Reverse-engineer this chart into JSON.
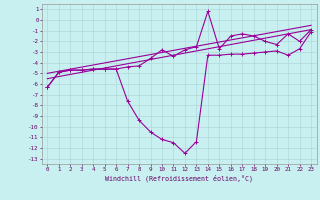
{
  "xlabel": "Windchill (Refroidissement éolien,°C)",
  "bg_color": "#c8f0f0",
  "grid_color": "#b0d8d8",
  "line_color": "#990099",
  "xlim": [
    -0.5,
    23.5
  ],
  "ylim": [
    -13.5,
    1.5
  ],
  "xticks": [
    0,
    1,
    2,
    3,
    4,
    5,
    6,
    7,
    8,
    9,
    10,
    11,
    12,
    13,
    14,
    15,
    16,
    17,
    18,
    19,
    20,
    21,
    22,
    23
  ],
  "yticks": [
    1,
    0,
    -1,
    -2,
    -3,
    -4,
    -5,
    -6,
    -7,
    -8,
    -9,
    -10,
    -11,
    -12,
    -13
  ],
  "line1_x": [
    0,
    1,
    2,
    3,
    4,
    5,
    6,
    7,
    8,
    9,
    10,
    11,
    12,
    13,
    14,
    15,
    16,
    17,
    18,
    19,
    20,
    21,
    22,
    23
  ],
  "line1_y": [
    -6.3,
    -4.9,
    -4.7,
    -4.7,
    -4.6,
    -4.6,
    -4.6,
    -7.6,
    -9.4,
    -10.5,
    -11.2,
    -11.5,
    -12.5,
    -11.4,
    -3.3,
    -3.3,
    -3.2,
    -3.2,
    -3.1,
    -3.0,
    -2.9,
    -3.3,
    -2.7,
    -1.1
  ],
  "line2_x": [
    0,
    1,
    2,
    3,
    4,
    5,
    6,
    7,
    8,
    9,
    10,
    11,
    12,
    13,
    14,
    15,
    16,
    17,
    18,
    19,
    20,
    21,
    22,
    23
  ],
  "line2_y": [
    -6.3,
    -4.9,
    -4.7,
    -4.7,
    -4.6,
    -4.6,
    -4.6,
    -4.4,
    -4.3,
    -3.6,
    -2.8,
    -3.4,
    -2.8,
    -2.5,
    0.8,
    -2.7,
    -1.5,
    -1.3,
    -1.5,
    -2.0,
    -2.3,
    -1.3,
    -2.0,
    -0.9
  ],
  "line3_x": [
    0,
    23
  ],
  "line3_y": [
    -5.5,
    -0.9
  ],
  "line4_x": [
    0,
    23
  ],
  "line4_y": [
    -5.0,
    -0.5
  ]
}
